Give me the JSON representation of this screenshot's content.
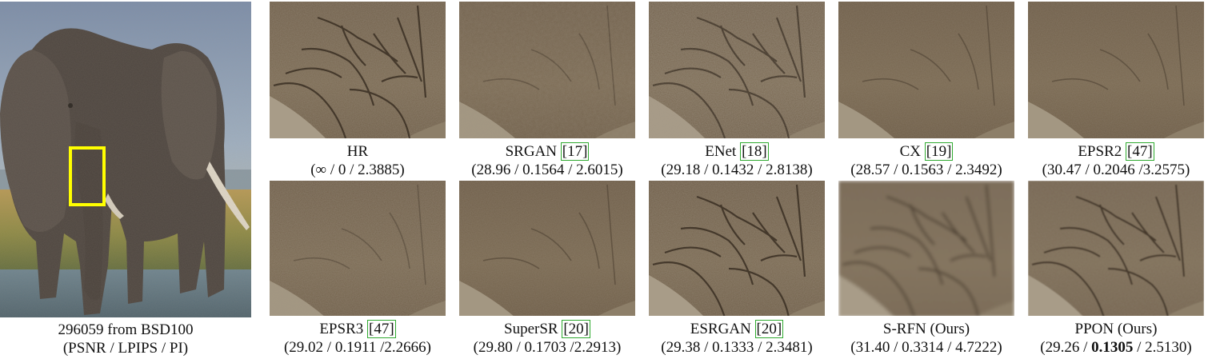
{
  "main": {
    "caption_line1": "296059 from BSD100",
    "caption_line2": "(PSNR / LPIPS / PI)",
    "highlight_color": "#ffff00"
  },
  "crops": [
    {
      "name": "HR",
      "ref": "",
      "metrics": "(∞ / 0 / 2.3885)"
    },
    {
      "name": "SRGAN",
      "ref": "[17]",
      "metrics": "(28.96 / 0.1564 / 2.6015)"
    },
    {
      "name": "ENet",
      "ref": "[18]",
      "metrics": "(29.18 / 0.1432 / 2.8138)"
    },
    {
      "name": "CX",
      "ref": "[19]",
      "metrics": "(28.57 / 0.1563 / 2.3492)"
    },
    {
      "name": "EPSR2",
      "ref": "[47]",
      "metrics": "(30.47 / 0.2046 /3.2575)"
    },
    {
      "name": "EPSR3",
      "ref": "[47]",
      "metrics": "(29.02 / 0.1911 /2.2666)"
    },
    {
      "name": "SuperSR",
      "ref": "[20]",
      "metrics": "(29.80 / 0.1703 /2.2913)"
    },
    {
      "name": "ESRGAN",
      "ref": "[20]",
      "metrics": "(29.38 / 0.1333 / 2.3481)"
    },
    {
      "name": "S-RFN (Ours)",
      "ref": "",
      "metrics": "(31.40 / 0.3314 / 4.7222)"
    },
    {
      "name": "PPON (Ours)",
      "ref": "",
      "metrics_pre": "(29.26 / ",
      "metrics_bold": "0.1305",
      "metrics_post": " / 2.5130)"
    }
  ]
}
